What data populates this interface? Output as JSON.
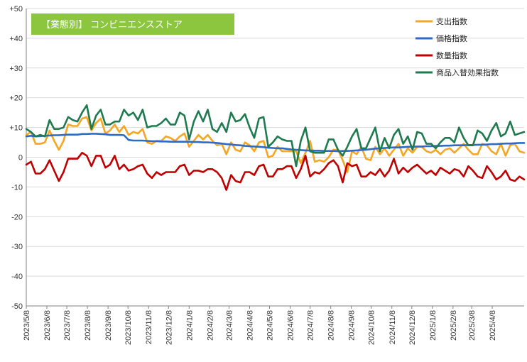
{
  "colors": {
    "title_bg": "#8CC63F",
    "spend": "#F5A623",
    "price": "#2E6BC6",
    "quantity": "#C00000",
    "product_mix": "#1E7B4F",
    "grid": "#D9D9D9",
    "axis": "#808080"
  },
  "chart_data": {
    "type": "line",
    "title": "【業態別】 コンビニエンスストア",
    "xlabel": "",
    "ylabel": "",
    "ylim": [
      -50,
      50
    ],
    "yticks": [
      "+50",
      "+40",
      "+30",
      "+20",
      "+10",
      "0",
      "-10",
      "-20",
      "-30",
      "-40",
      "-50"
    ],
    "ytick_values": [
      50,
      40,
      30,
      20,
      10,
      0,
      -10,
      -20,
      -30,
      -40,
      -50
    ],
    "x_range": [
      "2023/5/8",
      "2025/5/26"
    ],
    "xtick_labels": [
      "2023/5/8",
      "2023/6/8",
      "2023/7/8",
      "2023/8/8",
      "2023/9/8",
      "2023/10/8",
      "2023/11/8",
      "2023/12/8",
      "2024/1/8",
      "2024/2/8",
      "2024/3/8",
      "2024/4/8",
      "2024/5/8",
      "2024/6/8",
      "2024/7/8",
      "2024/8/8",
      "2024/9/8",
      "2024/10/8",
      "2024/11/8",
      "2024/12/8",
      "2025/1/8",
      "2025/2/8",
      "2025/3/8",
      "2025/4/8"
    ],
    "grid": true,
    "legend_position": "top-right",
    "x": [
      "2023/5/8",
      "2023/5/15",
      "2023/5/22",
      "2023/5/29",
      "2023/6/5",
      "2023/6/12",
      "2023/6/19",
      "2023/6/26",
      "2023/7/3",
      "2023/7/10",
      "2023/7/17",
      "2023/7/24",
      "2023/7/31",
      "2023/8/7",
      "2023/8/14",
      "2023/8/21",
      "2023/8/28",
      "2023/9/4",
      "2023/9/11",
      "2023/9/18",
      "2023/9/25",
      "2023/10/2",
      "2023/10/9",
      "2023/10/16",
      "2023/10/23",
      "2023/10/30",
      "2023/11/6",
      "2023/11/13",
      "2023/11/20",
      "2023/11/27",
      "2023/12/4",
      "2023/12/11",
      "2023/12/18",
      "2023/12/25",
      "2024/1/1",
      "2024/1/8",
      "2024/1/15",
      "2024/1/22",
      "2024/1/29",
      "2024/2/5",
      "2024/2/12",
      "2024/2/19",
      "2024/2/26",
      "2024/3/4",
      "2024/3/11",
      "2024/3/18",
      "2024/3/25",
      "2024/4/1",
      "2024/4/8",
      "2024/4/15",
      "2024/4/22",
      "2024/4/29",
      "2024/5/6",
      "2024/5/13",
      "2024/5/20",
      "2024/5/27",
      "2024/6/3",
      "2024/6/10",
      "2024/6/17",
      "2024/6/24",
      "2024/7/1",
      "2024/7/8",
      "2024/7/15",
      "2024/7/22",
      "2024/7/29",
      "2024/8/5",
      "2024/8/12",
      "2024/8/19",
      "2024/8/26",
      "2024/9/2",
      "2024/9/9",
      "2024/9/16",
      "2024/9/23",
      "2024/9/30",
      "2024/10/7",
      "2024/10/14",
      "2024/10/21",
      "2024/10/28",
      "2024/11/4",
      "2024/11/11",
      "2024/11/18",
      "2024/11/25",
      "2024/12/2",
      "2024/12/9",
      "2024/12/16",
      "2024/12/23",
      "2024/12/30",
      "2025/1/6",
      "2025/1/13",
      "2025/1/20",
      "2025/1/27",
      "2025/2/3",
      "2025/2/10",
      "2025/2/17",
      "2025/2/24",
      "2025/3/3",
      "2025/3/10",
      "2025/3/17",
      "2025/3/24",
      "2025/3/31",
      "2025/4/7",
      "2025/4/14",
      "2025/4/21",
      "2025/4/28",
      "2025/5/5",
      "2025/5/12",
      "2025/5/19",
      "2025/5/26"
    ],
    "series": [
      {
        "name": "支出指数",
        "color": "#F5A623",
        "values": [
          7.5,
          8.5,
          4.5,
          4.5,
          5.0,
          9.0,
          5.5,
          2.5,
          5.5,
          11.0,
          10.5,
          10.5,
          13.0,
          13.5,
          9.0,
          11.5,
          13.0,
          8.0,
          9.0,
          11.0,
          8.5,
          10.5,
          7.5,
          8.5,
          8.0,
          9.5,
          5.0,
          4.5,
          5.5,
          5.5,
          7.0,
          6.5,
          5.5,
          7.0,
          8.0,
          3.5,
          5.5,
          7.5,
          6.0,
          7.5,
          5.5,
          4.0,
          4.5,
          1.0,
          5.0,
          2.5,
          2.0,
          5.0,
          4.0,
          2.0,
          5.0,
          5.5,
          0.0,
          0.5,
          3.5,
          2.0,
          2.0,
          2.0,
          2.0,
          -2.0,
          1.5,
          5.5,
          -1.5,
          -1.0,
          -1.5,
          0.0,
          2.5,
          2.5,
          -1.0,
          -5.0,
          2.0,
          1.0,
          3.5,
          -0.5,
          -1.0,
          3.5,
          1.0,
          3.0,
          0.5,
          2.5,
          4.5,
          0.5,
          3.0,
          1.5,
          3.5,
          3.5,
          2.0,
          1.5,
          2.5,
          1.0,
          2.5,
          3.0,
          1.5,
          3.0,
          4.5,
          2.5,
          1.0,
          1.0,
          4.5,
          4.0,
          2.0,
          1.0,
          4.5,
          0.5,
          4.0,
          4.5,
          2.0,
          1.5
        ]
      },
      {
        "name": "価格指数",
        "color": "#2E6BC6",
        "values": [
          7.0,
          7.2,
          7.0,
          7.1,
          7.2,
          7.3,
          7.4,
          7.4,
          7.5,
          7.6,
          7.6,
          7.6,
          7.8,
          7.8,
          7.9,
          7.9,
          7.8,
          7.7,
          7.5,
          7.5,
          7.5,
          7.4,
          5.8,
          5.6,
          5.6,
          5.6,
          5.5,
          5.4,
          5.4,
          5.3,
          5.3,
          5.2,
          5.2,
          5.2,
          5.2,
          5.2,
          5.1,
          5.1,
          5.0,
          5.0,
          4.9,
          4.8,
          4.6,
          4.4,
          4.3,
          4.1,
          4.0,
          3.8,
          3.7,
          3.6,
          3.5,
          3.4,
          3.2,
          3.1,
          3.0,
          3.0,
          2.8,
          2.6,
          2.5,
          2.4,
          2.3,
          2.3,
          2.2,
          2.2,
          2.1,
          2.1,
          2.1,
          2.0,
          2.1,
          2.1,
          2.2,
          2.3,
          2.4,
          2.5,
          2.7,
          2.9,
          3.0,
          3.1,
          3.2,
          3.3,
          3.3,
          3.4,
          3.5,
          3.5,
          3.6,
          3.6,
          3.7,
          3.7,
          3.8,
          3.8,
          3.9,
          3.9,
          4.0,
          4.0,
          4.0,
          4.1,
          4.1,
          4.2,
          4.2,
          4.3,
          4.4,
          4.4,
          4.5,
          4.6,
          4.6,
          4.7,
          4.8,
          4.8
        ]
      },
      {
        "name": "数量指数",
        "color": "#C00000",
        "values": [
          -2.5,
          -1.5,
          -5.5,
          -5.5,
          -4.0,
          -1.0,
          -4.5,
          -8.0,
          -5.0,
          -0.5,
          -0.5,
          -0.5,
          1.5,
          0.5,
          -3.0,
          0.5,
          0.5,
          -3.5,
          -2.5,
          0.5,
          -4.0,
          -2.5,
          -4.5,
          -4.0,
          -3.0,
          -2.5,
          -5.5,
          -7.0,
          -5.0,
          -6.0,
          -5.0,
          -5.0,
          -5.0,
          -3.0,
          -2.5,
          -6.0,
          -4.5,
          -4.5,
          -5.0,
          -4.0,
          -4.0,
          -5.0,
          -7.0,
          -11.0,
          -6.0,
          -8.0,
          -8.5,
          -5.0,
          -5.0,
          -6.0,
          -3.0,
          -2.5,
          -6.5,
          -6.5,
          -4.0,
          -4.0,
          -3.0,
          -3.0,
          -7.0,
          -4.0,
          0.5,
          -6.5,
          -5.0,
          -5.5,
          -4.0,
          -2.0,
          -1.0,
          -3.0,
          -8.5,
          -2.0,
          -3.0,
          -2.5,
          -6.5,
          -6.5,
          -5.0,
          -6.0,
          -4.0,
          -6.5,
          -4.5,
          -0.5,
          -5.5,
          -3.5,
          -5.0,
          -3.5,
          -2.5,
          -4.0,
          -5.5,
          -4.5,
          -6.0,
          -3.5,
          -4.5,
          -5.5,
          -4.0,
          -4.5,
          -6.5,
          -3.0,
          -4.5,
          -6.5,
          -7.0,
          -3.0,
          -5.0,
          -7.5,
          -6.5,
          -4.5,
          -7.5,
          -8.0,
          -6.5,
          -7.5
        ]
      },
      {
        "name": "商品入替効果指数",
        "color": "#1E7B4F",
        "values": [
          9.5,
          8.5,
          7.0,
          7.5,
          7.0,
          12.5,
          9.5,
          9.5,
          10.0,
          13.5,
          12.5,
          12.0,
          15.0,
          17.5,
          9.5,
          14.0,
          16.0,
          11.0,
          11.0,
          12.0,
          12.0,
          16.0,
          14.0,
          15.0,
          12.5,
          16.0,
          10.0,
          10.5,
          10.5,
          11.5,
          13.0,
          11.0,
          11.0,
          15.0,
          14.0,
          6.0,
          12.0,
          15.5,
          12.0,
          16.0,
          9.5,
          8.5,
          11.5,
          8.5,
          15.0,
          12.0,
          12.5,
          14.5,
          10.0,
          6.5,
          13.0,
          13.5,
          3.5,
          5.0,
          7.0,
          6.0,
          5.5,
          5.5,
          -3.0,
          5.5,
          10.0,
          2.0,
          1.5,
          1.5,
          1.5,
          6.0,
          6.0,
          2.5,
          0.5,
          3.5,
          7.0,
          9.5,
          3.0,
          3.0,
          6.5,
          10.0,
          2.0,
          6.5,
          3.0,
          7.5,
          9.5,
          4.5,
          7.0,
          2.5,
          8.5,
          8.0,
          4.5,
          4.5,
          3.0,
          5.0,
          6.5,
          6.5,
          5.0,
          10.0,
          6.5,
          4.0,
          4.0,
          9.0,
          8.0,
          5.5,
          9.0,
          11.5,
          7.0,
          8.0,
          12.0,
          7.5,
          8.0,
          8.5
        ]
      }
    ]
  }
}
